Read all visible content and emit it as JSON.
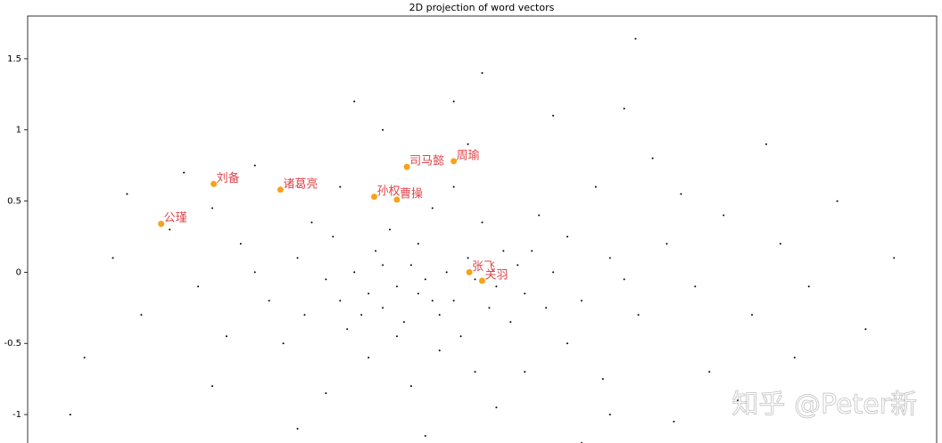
{
  "chart_data": {
    "type": "scatter",
    "title": "2D projection of word vectors",
    "xlim": [
      -3.2,
      3.2
    ],
    "ylim": [
      -1.2,
      1.8
    ],
    "yticks": [
      1.5,
      1.0,
      0.5,
      0.0,
      -0.5,
      -1.0
    ],
    "points": {
      "color": "#000000",
      "x": [
        -0.6,
        -0.4,
        -0.8,
        -0.2,
        -0.5,
        -0.9,
        -0.3,
        0.1,
        -0.7,
        -1.1,
        0.3,
        -0.1,
        -0.55,
        -1.3,
        0.5,
        -0.45,
        -0.95,
        0.2,
        -1.5,
        0.7,
        -0.65,
        -1.2,
        0.0,
        -0.3,
        0.9,
        -1.7,
        -0.8,
        0.4,
        1.1,
        -2.0,
        -1.4,
        0.6,
        1.3,
        -0.2,
        -1.0,
        1.5,
        -2.2,
        -0.5,
        0.3,
        1.7,
        -1.8,
        0.8,
        -0.1,
        1.9,
        -2.4,
        -1.1,
        0.1,
        2.1,
        -1.6,
        1.2,
        -0.7,
        2.3,
        -2.6,
        0.5,
        1.6,
        -1.9,
        2.5,
        -0.2,
        0.0,
        0.9,
        -1.3,
        2.7,
        -2.8,
        1.0,
        -0.9,
        2.0,
        -2.1,
        0.7,
        -0.4,
        2.9,
        -2.9,
        1.35,
        -0.35,
        -0.75,
        0.15,
        -0.15,
        -1.05,
        0.45,
        -0.6,
        -0.25,
        -0.85,
        0.05,
        -1.25,
        0.35,
        -0.45,
        -0.05,
        -0.7,
        -0.35,
        0.25,
        -1.0,
        0.6,
        1.0,
        -1.6,
        1.4,
        -1.9,
        0.85,
        -0.05,
        2.2,
        -2.5,
        1.8,
        1.08
      ],
      "y": [
        -0.1,
        -0.05,
        -0.15,
        -0.2,
        0.05,
        0.0,
        -0.3,
        -0.1,
        -0.25,
        -0.05,
        -0.15,
        0.1,
        -0.35,
        0.1,
        0.0,
        0.2,
        -0.4,
        -0.35,
        -0.2,
        -0.2,
        0.3,
        0.35,
        0.35,
        -0.55,
        0.1,
        0.2,
        -0.6,
        0.4,
        -0.3,
        -0.1,
        -0.5,
        -0.5,
        0.2,
        0.6,
        0.6,
        -0.1,
        0.3,
        -0.8,
        -0.7,
        0.4,
        -0.45,
        0.6,
        0.9,
        -0.3,
        -0.3,
        -0.85,
        -0.95,
        0.2,
        0.75,
        0.8,
        1.0,
        -0.1,
        0.1,
        1.1,
        -0.7,
        -0.8,
        0.5,
        1.2,
        1.4,
        -1.0,
        -1.1,
        -0.4,
        -0.6,
        1.15,
        1.2,
        0.9,
        0.7,
        -1.2,
        -1.15,
        0.1,
        -1.0,
        -1.05,
        0.45,
        0.15,
        0.15,
        -0.45,
        0.25,
        -0.25,
        -0.45,
        0.0,
        -0.3,
        -0.25,
        -0.3,
        0.15,
        -0.15,
        -0.05,
        0.05,
        -0.2,
        0.05,
        -0.2,
        0.25,
        -0.05,
        0.0,
        0.55,
        0.45,
        -0.75,
        -0.7,
        -0.6,
        0.55,
        -0.9,
        1.64
      ]
    },
    "highlights": {
      "color": "#f5a31a",
      "label_color": "#e0454a",
      "x": [
        -2.26,
        -1.89,
        -1.42,
        -0.76,
        -0.6,
        -0.53,
        -0.2,
        -0.09,
        0.0
      ],
      "y": [
        0.34,
        0.62,
        0.58,
        0.53,
        0.51,
        0.74,
        0.78,
        0.0,
        -0.06
      ],
      "labels": [
        "公瑾",
        "刘备",
        "诸葛亮",
        "孙权",
        "曹操",
        "司马懿",
        "周瑜",
        "张飞",
        "关羽"
      ]
    },
    "watermark": "知乎 @Peter新"
  }
}
